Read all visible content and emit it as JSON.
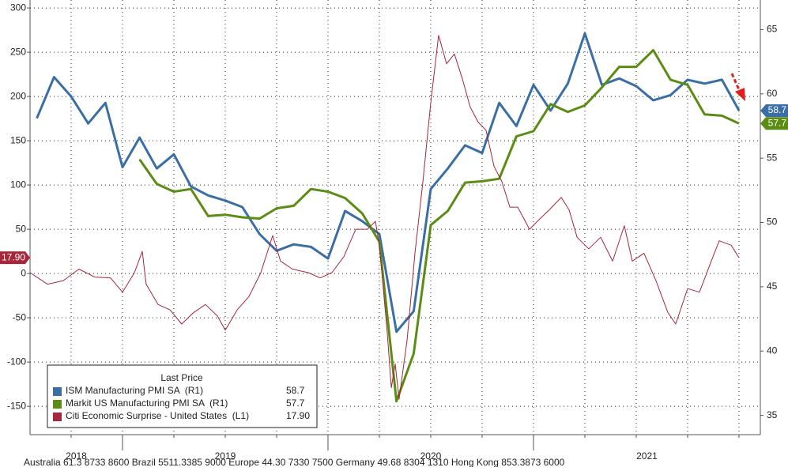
{
  "chart_data": {
    "type": "line",
    "xlim": [
      2018.55,
      2022.104
    ],
    "xticks": [
      2019,
      2020,
      2021
    ],
    "x_year_labels": [
      "2018",
      "2019",
      "2020",
      "2021"
    ],
    "xgrid": [
      2018.75,
      2019.0,
      2019.25,
      2019.5,
      2019.75,
      2020.0,
      2020.25,
      2020.5,
      2020.75,
      2021.0,
      2021.25,
      2021.5,
      2021.75,
      2022.0
    ],
    "ylim": [
      -182,
      309
    ],
    "yticks": [
      -150,
      -100,
      -50,
      0,
      50,
      100,
      150,
      200,
      250,
      300
    ],
    "y2lim": [
      33.5,
      67.3
    ],
    "y2ticks": [
      35,
      40,
      45,
      50,
      55,
      60,
      65
    ],
    "grid": true,
    "legend_title": "Last Price",
    "ticker": "Australia 61.3 8733 8600 Brazil 5511.3385 9000 Europe 44.30 7330 7500 Germany 49.68 8304 1310 Hong Kong 853.3873 6000",
    "series": [
      {
        "name": "ISM Manufacturing PMI SA  (R1)",
        "color": "#3a6ea5",
        "axis": "y2",
        "last_label": "58.7",
        "x": [
          2018.583,
          2018.667,
          2018.75,
          2018.833,
          2018.917,
          2019.0,
          2019.083,
          2019.167,
          2019.25,
          2019.333,
          2019.417,
          2019.5,
          2019.583,
          2019.667,
          2019.75,
          2019.833,
          2019.917,
          2020.0,
          2020.083,
          2020.167,
          2020.25,
          2020.333,
          2020.417,
          2020.5,
          2020.583,
          2020.667,
          2020.75,
          2020.833,
          2020.917,
          2021.0,
          2021.083,
          2021.167,
          2021.25,
          2021.333,
          2021.417,
          2021.5,
          2021.583,
          2021.667,
          2021.75,
          2021.833,
          2021.917,
          2022.0
        ],
        "values": [
          58.1,
          61.3,
          59.8,
          57.7,
          59.3,
          54.3,
          56.6,
          54.2,
          55.3,
          52.8,
          52.1,
          51.7,
          51.2,
          49.1,
          47.8,
          48.3,
          48.1,
          47.2,
          50.9,
          50.1,
          49.1,
          41.5,
          43.1,
          52.6,
          54.2,
          56.0,
          55.4,
          59.3,
          57.5,
          60.7,
          58.7,
          60.8,
          64.7,
          60.7,
          61.2,
          60.6,
          59.5,
          59.9,
          61.1,
          60.8,
          61.1,
          58.7
        ]
      },
      {
        "name": "Markit US Manufacturing PMI SA  (R1)",
        "color": "#5b8c14",
        "axis": "y2",
        "last_label": "57.7",
        "x": [
          2019.083,
          2019.167,
          2019.25,
          2019.333,
          2019.417,
          2019.5,
          2019.583,
          2019.667,
          2019.75,
          2019.833,
          2019.917,
          2020.0,
          2020.083,
          2020.167,
          2020.25,
          2020.333,
          2020.417,
          2020.5,
          2020.583,
          2020.667,
          2020.75,
          2020.833,
          2020.917,
          2021.0,
          2021.083,
          2021.167,
          2021.25,
          2021.333,
          2021.417,
          2021.5,
          2021.583,
          2021.667,
          2021.75,
          2021.833,
          2021.917,
          2022.0
        ],
        "values": [
          54.9,
          53.0,
          52.4,
          52.6,
          50.5,
          50.6,
          50.4,
          50.3,
          51.1,
          51.3,
          52.6,
          52.4,
          51.9,
          50.7,
          48.5,
          36.1,
          39.8,
          49.8,
          50.9,
          53.1,
          53.2,
          53.4,
          56.7,
          57.1,
          59.2,
          58.6,
          59.1,
          60.5,
          62.1,
          62.1,
          63.4,
          61.1,
          60.7,
          58.4,
          58.3,
          57.7
        ]
      },
      {
        "name": "Citi Economic Surprise - United States  (L1)",
        "color": "#a6263b",
        "axis": "y",
        "last_label": "17.90",
        "x": [
          2018.55,
          2018.635,
          2018.712,
          2018.788,
          2018.865,
          2018.942,
          2019.0,
          2019.058,
          2019.096,
          2019.115,
          2019.173,
          2019.231,
          2019.288,
          2019.346,
          2019.404,
          2019.462,
          2019.5,
          2019.558,
          2019.615,
          2019.673,
          2019.731,
          2019.769,
          2019.827,
          2019.904,
          2019.962,
          2020.019,
          2020.077,
          2020.135,
          2020.192,
          2020.231,
          2020.25,
          2020.288,
          2020.308,
          2020.327,
          2020.346,
          2020.385,
          2020.423,
          2020.462,
          2020.5,
          2020.538,
          2020.577,
          2020.615,
          2020.654,
          2020.692,
          2020.731,
          2020.769,
          2020.808,
          2020.846,
          2020.885,
          2020.923,
          2020.981,
          2021.019,
          2021.077,
          2021.135,
          2021.173,
          2021.212,
          2021.269,
          2021.327,
          2021.385,
          2021.442,
          2021.481,
          2021.538,
          2021.596,
          2021.654,
          2021.692,
          2021.75,
          2021.808,
          2021.865,
          2021.904,
          2021.962,
          2022.0
        ],
        "values": [
          1,
          -12,
          -8,
          5,
          -4,
          -5,
          -21,
          1,
          25,
          -12,
          -35,
          -41,
          -57,
          -44,
          -35,
          -48,
          -64,
          -41,
          -26,
          1,
          43,
          14,
          5,
          1,
          -5,
          1,
          19,
          50,
          50,
          59,
          32,
          -66,
          -129,
          -102,
          -142,
          -75,
          23,
          104,
          193,
          269,
          237,
          248,
          220,
          188,
          171,
          162,
          121,
          104,
          75,
          75,
          50,
          59,
          72,
          86,
          72,
          41,
          28,
          41,
          14,
          54,
          14,
          23,
          -8,
          -44,
          -57,
          -17,
          -21,
          14,
          37,
          32,
          17.9
        ]
      }
    ]
  }
}
